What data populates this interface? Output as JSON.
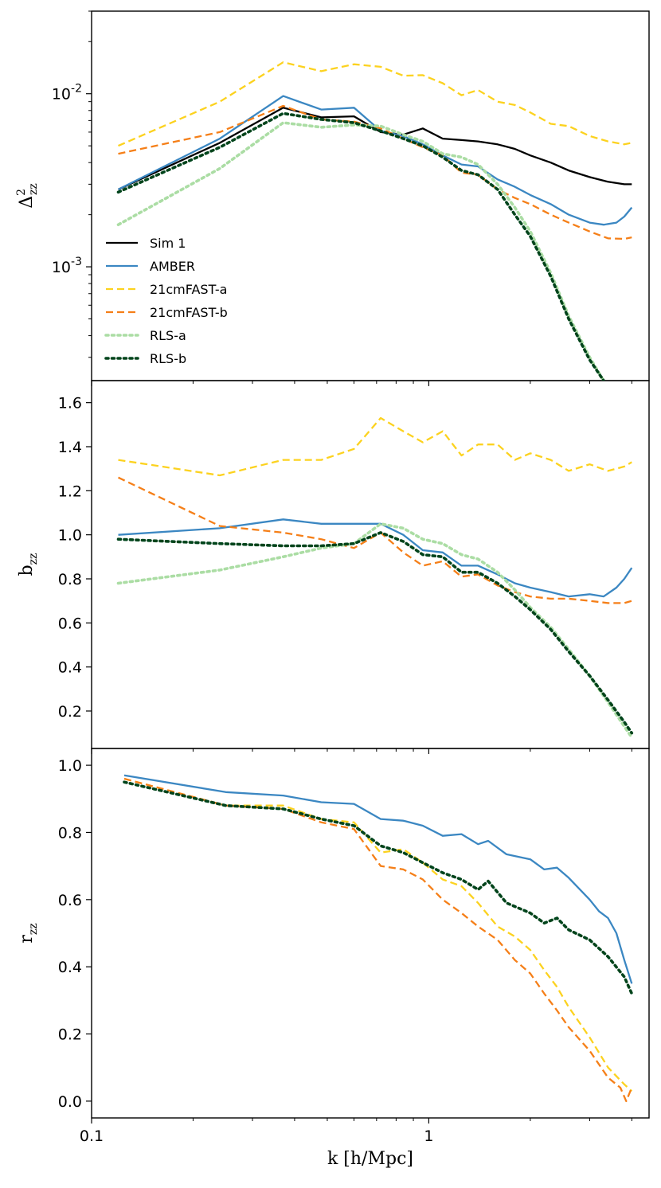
{
  "chart_data": {
    "type": "line",
    "xscale": "log",
    "xlim": [
      0.1,
      4.5
    ],
    "xlabel": "k [h/Mpc]",
    "xticks": [
      {
        "value": 0.1,
        "label": "0.1"
      },
      {
        "value": 1,
        "label": "1"
      }
    ],
    "series_styles": {
      "Sim 1": {
        "color": "#000000",
        "dash": "solid"
      },
      "AMBER": {
        "color": "#3b87c2",
        "dash": "solid"
      },
      "21cmFAST-a": {
        "color": "#fcd21f",
        "dash": "dashed"
      },
      "21cmFAST-b": {
        "color": "#f57f18",
        "dash": "dashed"
      },
      "RLS-a": {
        "color": "#abdda4",
        "dash": "dotted"
      },
      "RLS-b": {
        "color": "#00441b",
        "dash": "dotted"
      }
    },
    "legend": {
      "placement": "lower-left of top panel",
      "entries": [
        "Sim 1",
        "AMBER",
        "21cmFAST-a",
        "21cmFAST-b",
        "RLS-a",
        "RLS-b"
      ]
    },
    "panels": [
      {
        "id": "power",
        "ylabel": "Δ²_zz",
        "ylabel_main": "Δ",
        "ylabel_sup": "2",
        "ylabel_sub": "zz",
        "yscale": "log",
        "ylim": [
          0.00022,
          0.03
        ],
        "yticks": [
          {
            "value": 0.01,
            "mantissa": "10",
            "exponent": "-2"
          },
          {
            "value": 0.001,
            "mantissa": "10",
            "exponent": "-3"
          }
        ],
        "series": [
          {
            "name": "Sim 1",
            "x": [
              0.12,
              0.24,
              0.37,
              0.48,
              0.6,
              0.72,
              0.84,
              0.96,
              1.1,
              1.25,
              1.4,
              1.6,
              1.8,
              2.0,
              2.3,
              2.6,
              3.0,
              3.4,
              3.8,
              4.0
            ],
            "y": [
              0.0028,
              0.0052,
              0.0083,
              0.0073,
              0.0074,
              0.006,
              0.0058,
              0.0063,
              0.0055,
              0.0054,
              0.0053,
              0.0051,
              0.0048,
              0.0044,
              0.004,
              0.0036,
              0.0033,
              0.0031,
              0.003,
              0.003
            ]
          },
          {
            "name": "AMBER",
            "x": [
              0.12,
              0.24,
              0.37,
              0.48,
              0.6,
              0.72,
              0.84,
              0.96,
              1.1,
              1.25,
              1.4,
              1.6,
              1.8,
              2.0,
              2.3,
              2.6,
              3.0,
              3.3,
              3.6,
              3.8,
              4.0
            ],
            "y": [
              0.0028,
              0.0055,
              0.0097,
              0.0081,
              0.0083,
              0.0061,
              0.0057,
              0.0051,
              0.0044,
              0.0039,
              0.0038,
              0.0032,
              0.0029,
              0.0026,
              0.0023,
              0.002,
              0.0018,
              0.00175,
              0.0018,
              0.00195,
              0.0022
            ]
          },
          {
            "name": "21cmFAST-a",
            "x": [
              0.12,
              0.24,
              0.37,
              0.48,
              0.6,
              0.72,
              0.84,
              0.96,
              1.1,
              1.25,
              1.4,
              1.6,
              1.8,
              2.0,
              2.3,
              2.6,
              3.0,
              3.4,
              3.8,
              4.0
            ],
            "y": [
              0.005,
              0.009,
              0.0152,
              0.0135,
              0.0148,
              0.0143,
              0.0127,
              0.0128,
              0.0115,
              0.0098,
              0.0105,
              0.009,
              0.0086,
              0.0078,
              0.0067,
              0.0065,
              0.0057,
              0.0053,
              0.0051,
              0.0052
            ]
          },
          {
            "name": "21cmFAST-b",
            "x": [
              0.12,
              0.24,
              0.37,
              0.48,
              0.6,
              0.72,
              0.84,
              0.96,
              1.1,
              1.25,
              1.4,
              1.6,
              1.8,
              2.0,
              2.3,
              2.6,
              3.0,
              3.4,
              3.8,
              4.0
            ],
            "y": [
              0.0045,
              0.006,
              0.0085,
              0.0071,
              0.0069,
              0.0063,
              0.0055,
              0.0049,
              0.0044,
              0.0035,
              0.0034,
              0.0028,
              0.0025,
              0.0023,
              0.002,
              0.0018,
              0.0016,
              0.00146,
              0.00145,
              0.00148
            ]
          },
          {
            "name": "RLS-a",
            "x": [
              0.12,
              0.24,
              0.37,
              0.48,
              0.6,
              0.72,
              0.84,
              0.96,
              1.1,
              1.25,
              1.4,
              1.6,
              1.8,
              2.0,
              2.3,
              2.6,
              3.0,
              3.3
            ],
            "y": [
              0.00175,
              0.0037,
              0.0068,
              0.0064,
              0.0066,
              0.0065,
              0.0058,
              0.0053,
              0.0045,
              0.0043,
              0.0039,
              0.003,
              0.0022,
              0.0016,
              0.00092,
              0.00052,
              0.0003,
              0.00022
            ]
          },
          {
            "name": "RLS-b",
            "x": [
              0.12,
              0.24,
              0.37,
              0.48,
              0.6,
              0.72,
              0.84,
              0.96,
              1.1,
              1.25,
              1.4,
              1.6,
              1.8,
              2.0,
              2.3,
              2.6,
              3.0,
              3.3
            ],
            "y": [
              0.0027,
              0.0049,
              0.0077,
              0.0071,
              0.0068,
              0.0061,
              0.0055,
              0.005,
              0.0043,
              0.0036,
              0.0034,
              0.0028,
              0.002,
              0.0015,
              0.00088,
              0.0005,
              0.00029,
              0.00022
            ]
          }
        ]
      },
      {
        "id": "bias",
        "ylabel": "b_zz",
        "ylabel_main": "b",
        "ylabel_sub": "zz",
        "yscale": "linear",
        "ylim": [
          0.03,
          1.7
        ],
        "yticks": [
          {
            "value": 0.2,
            "label": "0.2"
          },
          {
            "value": 0.4,
            "label": "0.4"
          },
          {
            "value": 0.6,
            "label": "0.6"
          },
          {
            "value": 0.8,
            "label": "0.8"
          },
          {
            "value": 1.0,
            "label": "1.0"
          },
          {
            "value": 1.2,
            "label": "1.2"
          },
          {
            "value": 1.4,
            "label": "1.4"
          },
          {
            "value": 1.6,
            "label": "1.6"
          }
        ],
        "series": [
          {
            "name": "AMBER",
            "x": [
              0.12,
              0.24,
              0.37,
              0.48,
              0.6,
              0.72,
              0.84,
              0.96,
              1.1,
              1.25,
              1.4,
              1.6,
              1.8,
              2.0,
              2.3,
              2.6,
              3.0,
              3.3,
              3.6,
              3.8,
              4.0
            ],
            "y": [
              1.0,
              1.03,
              1.07,
              1.05,
              1.05,
              1.05,
              1.0,
              0.93,
              0.92,
              0.86,
              0.86,
              0.82,
              0.78,
              0.76,
              0.74,
              0.72,
              0.73,
              0.72,
              0.76,
              0.8,
              0.85
            ]
          },
          {
            "name": "21cmFAST-a",
            "x": [
              0.12,
              0.24,
              0.37,
              0.48,
              0.6,
              0.72,
              0.84,
              0.96,
              1.1,
              1.25,
              1.4,
              1.6,
              1.8,
              2.0,
              2.3,
              2.6,
              3.0,
              3.4,
              3.8,
              4.0
            ],
            "y": [
              1.34,
              1.27,
              1.34,
              1.34,
              1.39,
              1.53,
              1.47,
              1.42,
              1.47,
              1.36,
              1.41,
              1.41,
              1.34,
              1.37,
              1.34,
              1.29,
              1.32,
              1.29,
              1.31,
              1.33
            ]
          },
          {
            "name": "21cmFAST-b",
            "x": [
              0.12,
              0.24,
              0.37,
              0.48,
              0.6,
              0.72,
              0.84,
              0.96,
              1.1,
              1.25,
              1.4,
              1.6,
              1.8,
              2.0,
              2.3,
              2.6,
              3.0,
              3.4,
              3.8,
              4.0
            ],
            "y": [
              1.26,
              1.04,
              1.01,
              0.98,
              0.94,
              1.01,
              0.92,
              0.86,
              0.88,
              0.81,
              0.82,
              0.77,
              0.74,
              0.72,
              0.71,
              0.71,
              0.7,
              0.69,
              0.69,
              0.7
            ]
          },
          {
            "name": "RLS-a",
            "x": [
              0.12,
              0.24,
              0.37,
              0.48,
              0.6,
              0.72,
              0.84,
              0.96,
              1.1,
              1.25,
              1.4,
              1.6,
              1.8,
              2.0,
              2.3,
              2.6,
              3.0,
              3.4,
              3.8,
              4.0
            ],
            "y": [
              0.78,
              0.84,
              0.9,
              0.94,
              0.96,
              1.05,
              1.03,
              0.98,
              0.96,
              0.91,
              0.89,
              0.83,
              0.75,
              0.67,
              0.58,
              0.48,
              0.36,
              0.24,
              0.13,
              0.08
            ]
          },
          {
            "name": "RLS-b",
            "x": [
              0.12,
              0.24,
              0.37,
              0.48,
              0.6,
              0.72,
              0.84,
              0.96,
              1.1,
              1.25,
              1.4,
              1.6,
              1.8,
              2.0,
              2.3,
              2.6,
              3.0,
              3.4,
              3.8,
              4.0
            ],
            "y": [
              0.98,
              0.96,
              0.95,
              0.95,
              0.96,
              1.01,
              0.97,
              0.91,
              0.9,
              0.83,
              0.83,
              0.78,
              0.72,
              0.66,
              0.57,
              0.47,
              0.36,
              0.25,
              0.15,
              0.1
            ]
          }
        ]
      },
      {
        "id": "correlation",
        "ylabel": "r_zz",
        "ylabel_main": "r",
        "ylabel_sub": "zz",
        "yscale": "linear",
        "ylim": [
          -0.05,
          1.05
        ],
        "yticks": [
          {
            "value": 0.0,
            "label": "0.0"
          },
          {
            "value": 0.2,
            "label": "0.2"
          },
          {
            "value": 0.4,
            "label": "0.4"
          },
          {
            "value": 0.6,
            "label": "0.6"
          },
          {
            "value": 0.8,
            "label": "0.8"
          },
          {
            "value": 1.0,
            "label": "1.0"
          }
        ],
        "series": [
          {
            "name": "AMBER",
            "x": [
              0.125,
              0.25,
              0.37,
              0.48,
              0.6,
              0.72,
              0.84,
              0.96,
              1.1,
              1.25,
              1.4,
              1.5,
              1.7,
              2.0,
              2.2,
              2.4,
              2.6,
              3.0,
              3.2,
              3.4,
              3.6,
              3.8,
              4.0
            ],
            "y": [
              0.97,
              0.92,
              0.91,
              0.89,
              0.885,
              0.84,
              0.835,
              0.82,
              0.79,
              0.795,
              0.765,
              0.775,
              0.735,
              0.72,
              0.69,
              0.695,
              0.665,
              0.6,
              0.565,
              0.545,
              0.5,
              0.42,
              0.35
            ]
          },
          {
            "name": "21cmFAST-a",
            "x": [
              0.125,
              0.25,
              0.37,
              0.48,
              0.6,
              0.72,
              0.84,
              0.96,
              1.1,
              1.25,
              1.4,
              1.6,
              1.8,
              2.0,
              2.2,
              2.4,
              2.6,
              3.0,
              3.4,
              3.8,
              4.0
            ],
            "y": [
              0.96,
              0.88,
              0.88,
              0.84,
              0.83,
              0.74,
              0.75,
              0.71,
              0.66,
              0.64,
              0.59,
              0.52,
              0.49,
              0.45,
              0.39,
              0.34,
              0.28,
              0.19,
              0.1,
              0.05,
              0.03
            ]
          },
          {
            "name": "21cmFAST-b",
            "x": [
              0.125,
              0.25,
              0.37,
              0.48,
              0.6,
              0.72,
              0.84,
              0.96,
              1.1,
              1.25,
              1.4,
              1.6,
              1.8,
              2.0,
              2.2,
              2.4,
              2.6,
              3.0,
              3.4,
              3.7,
              3.85,
              4.0
            ],
            "y": [
              0.96,
              0.88,
              0.87,
              0.83,
              0.81,
              0.7,
              0.69,
              0.66,
              0.6,
              0.56,
              0.52,
              0.48,
              0.42,
              0.38,
              0.32,
              0.27,
              0.22,
              0.15,
              0.07,
              0.04,
              0.0,
              0.04
            ]
          },
          {
            "name": "RLS-b",
            "x": [
              0.125,
              0.25,
              0.37,
              0.48,
              0.6,
              0.72,
              0.84,
              0.96,
              1.1,
              1.25,
              1.4,
              1.5,
              1.7,
              2.0,
              2.2,
              2.4,
              2.6,
              3.0,
              3.4,
              3.8,
              4.0
            ],
            "y": [
              0.95,
              0.88,
              0.87,
              0.84,
              0.82,
              0.76,
              0.74,
              0.71,
              0.68,
              0.66,
              0.63,
              0.655,
              0.59,
              0.56,
              0.53,
              0.545,
              0.51,
              0.48,
              0.43,
              0.37,
              0.32
            ]
          }
        ]
      }
    ]
  }
}
